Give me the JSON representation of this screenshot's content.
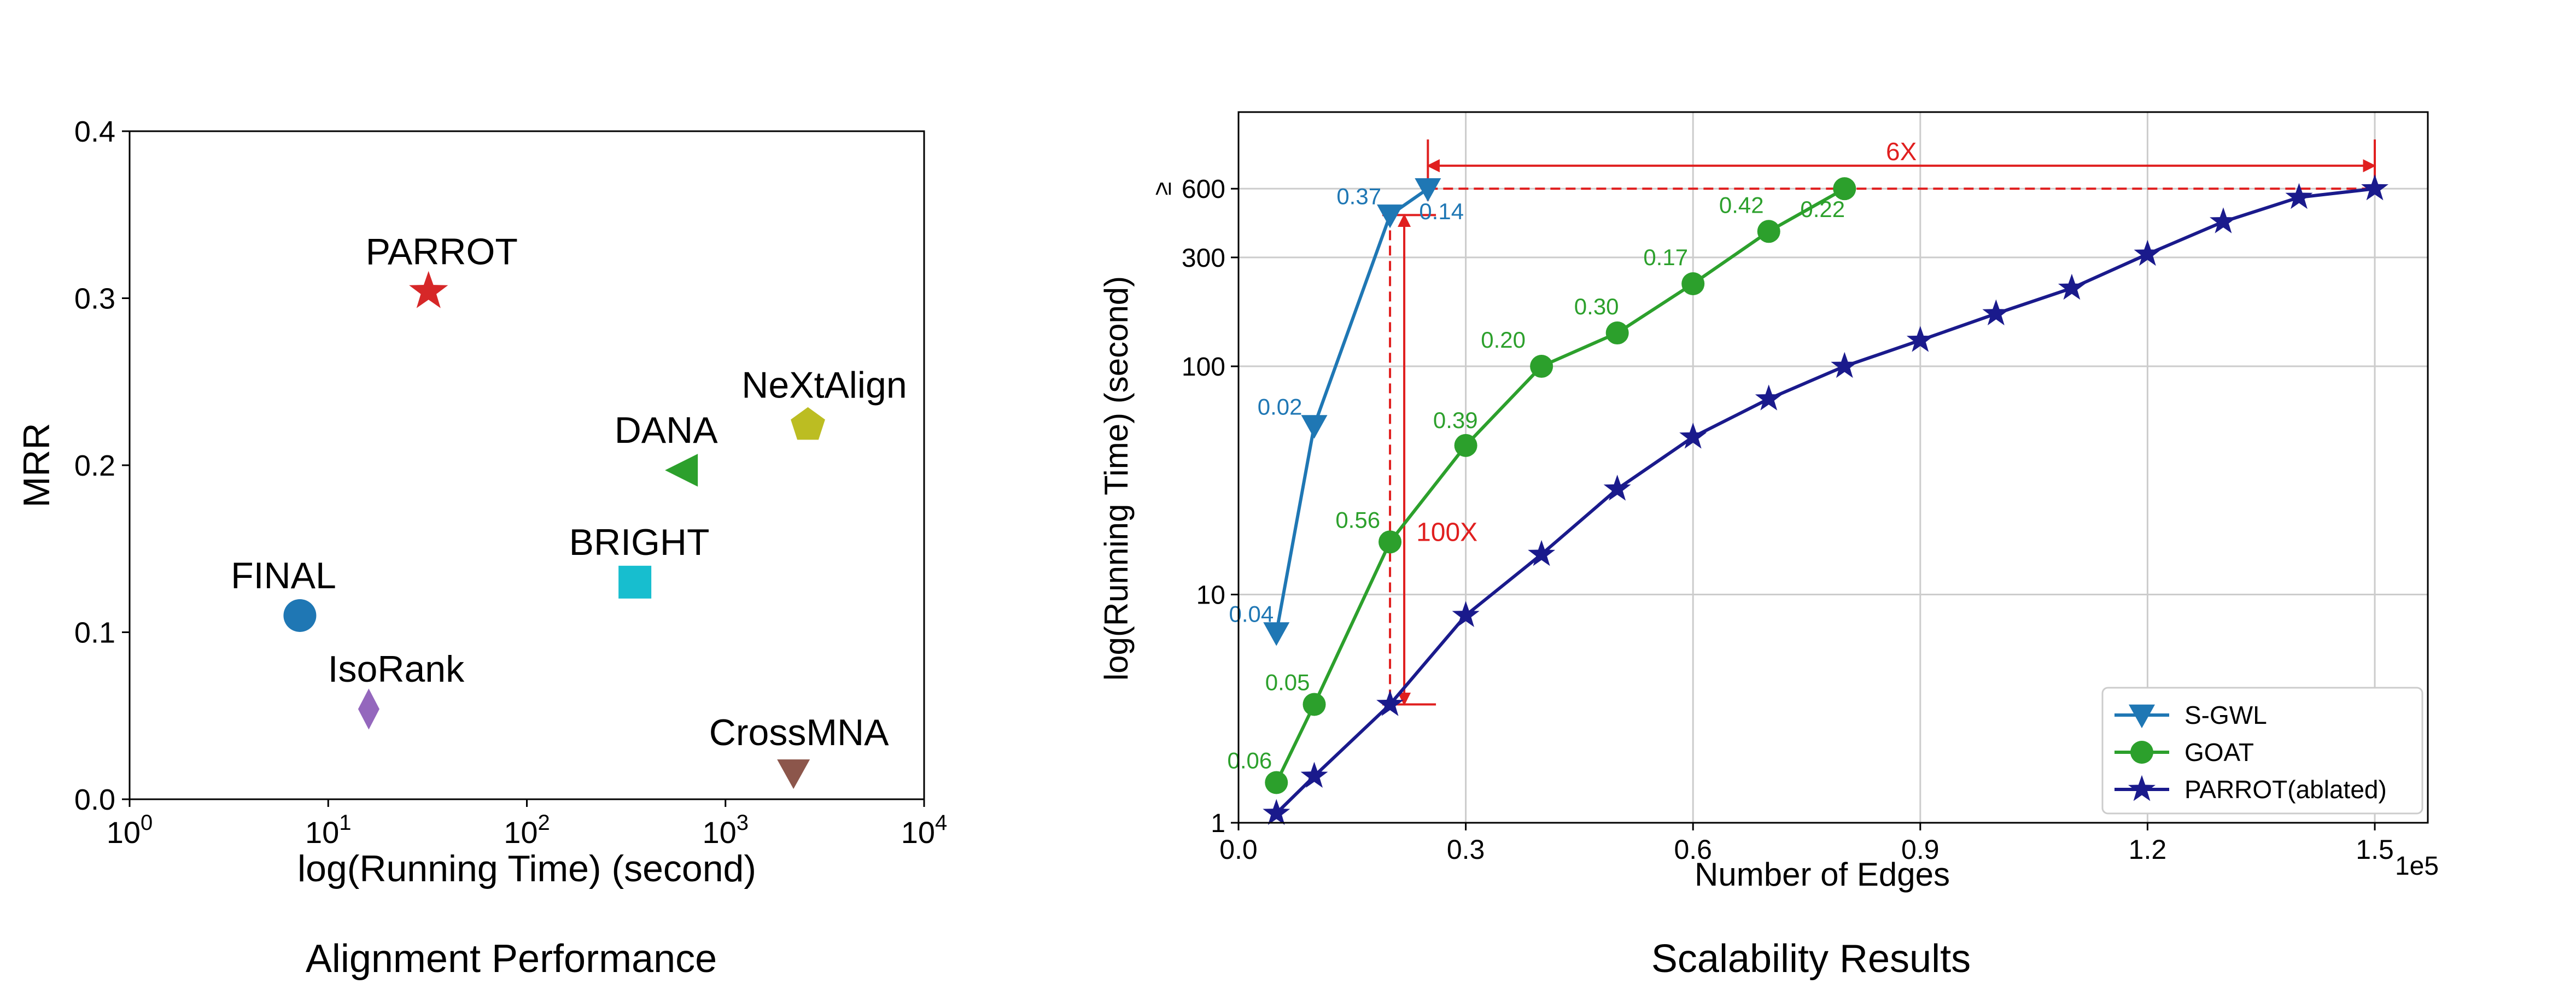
{
  "chart_data": [
    {
      "type": "scatter",
      "caption": "Alignment Performance",
      "xlabel": "log(Running Time) (second)",
      "ylabel": "MRR",
      "x_scale": "log",
      "xlim": [
        1,
        10000
      ],
      "ylim": [
        0,
        0.4
      ],
      "x_ticks": [
        1,
        10,
        100,
        1000,
        10000
      ],
      "x_tick_labels": [
        {
          "base": "10",
          "exp": "0"
        },
        {
          "base": "10",
          "exp": "1"
        },
        {
          "base": "10",
          "exp": "2"
        },
        {
          "base": "10",
          "exp": "3"
        },
        {
          "base": "10",
          "exp": "4"
        }
      ],
      "y_ticks": [
        0,
        0.1,
        0.2,
        0.3,
        0.4
      ],
      "y_tick_labels": [
        "0.0",
        "0.1",
        "0.2",
        "0.3",
        "0.4"
      ],
      "grid": false,
      "points": [
        {
          "name": "PARROT",
          "x": 32,
          "y": 0.304,
          "marker": "star",
          "color": "#d62728"
        },
        {
          "name": "NeXtAlign",
          "x": 2600,
          "y": 0.224,
          "marker": "pentagon",
          "color": "#bcbd22"
        },
        {
          "name": "DANA",
          "x": 600,
          "y": 0.197,
          "marker": "triangle-left",
          "color": "#2ca02c"
        },
        {
          "name": "BRIGHT",
          "x": 350,
          "y": 0.13,
          "marker": "square",
          "color": "#17becf"
        },
        {
          "name": "FINAL",
          "x": 7.2,
          "y": 0.11,
          "marker": "circle",
          "color": "#1f77b4"
        },
        {
          "name": "IsoRank",
          "x": 16,
          "y": 0.054,
          "marker": "diamond",
          "color": "#9467bd"
        },
        {
          "name": "CrossMNA",
          "x": 2200,
          "y": 0.016,
          "marker": "triangle-down",
          "color": "#8c564b"
        }
      ]
    },
    {
      "type": "line",
      "caption": "Scalability Results",
      "xlabel": "Number of Edges",
      "ylabel": "log(Running Time) (second)",
      "x_multiplier": "1e5",
      "y_scale": "log",
      "xlim": [
        0,
        1.57
      ],
      "ylim": [
        1,
        1300
      ],
      "x_ticks": [
        0.0,
        0.3,
        0.6,
        0.9,
        1.2,
        1.5
      ],
      "x_tick_labels": [
        "0.0",
        "0.3",
        "0.6",
        "0.9",
        "1.2",
        "1.5"
      ],
      "y_ticks": [
        1,
        10,
        100,
        300,
        600
      ],
      "y_tick_labels": [
        "1",
        "10",
        "100",
        "300",
        "600"
      ],
      "y_top_tick_prefix": "≥",
      "grid": true,
      "legend": "bottom-right",
      "series": [
        {
          "name": "S-GWL",
          "color": "#1f77b4",
          "marker": "triangle-down",
          "x": [
            0.05,
            0.1,
            0.2,
            0.25
          ],
          "y": [
            6.8,
            55,
            460,
            600
          ],
          "labels": [
            "0.04",
            "0.02",
            "0.37",
            "0.14"
          ]
        },
        {
          "name": "GOAT",
          "color": "#2ca02c",
          "marker": "circle",
          "x": [
            0.05,
            0.1,
            0.2,
            0.3,
            0.4,
            0.5,
            0.6,
            0.7,
            0.8
          ],
          "y": [
            1.5,
            3.3,
            17,
            45,
            100,
            140,
            230,
            390,
            600
          ],
          "labels": [
            "0.06",
            "0.05",
            "0.56",
            "0.39",
            "0.20",
            "0.30",
            "0.17",
            "0.42",
            "0.22"
          ]
        },
        {
          "name": "PARROT(ablated)",
          "color": "#1a1a8c",
          "marker": "star",
          "x": [
            0.05,
            0.1,
            0.2,
            0.3,
            0.4,
            0.5,
            0.6,
            0.7,
            0.8,
            0.9,
            1.0,
            1.1,
            1.2,
            1.3,
            1.4,
            1.5
          ],
          "y": [
            1.1,
            1.6,
            3.3,
            8.1,
            15,
            29,
            49,
            72,
            100,
            130,
            170,
            220,
            310,
            430,
            550,
            600
          ],
          "labels": []
        }
      ],
      "annotations": [
        {
          "text": "6X",
          "color": "#e01f1f"
        },
        {
          "text": "100X",
          "color": "#e01f1f"
        }
      ]
    }
  ]
}
